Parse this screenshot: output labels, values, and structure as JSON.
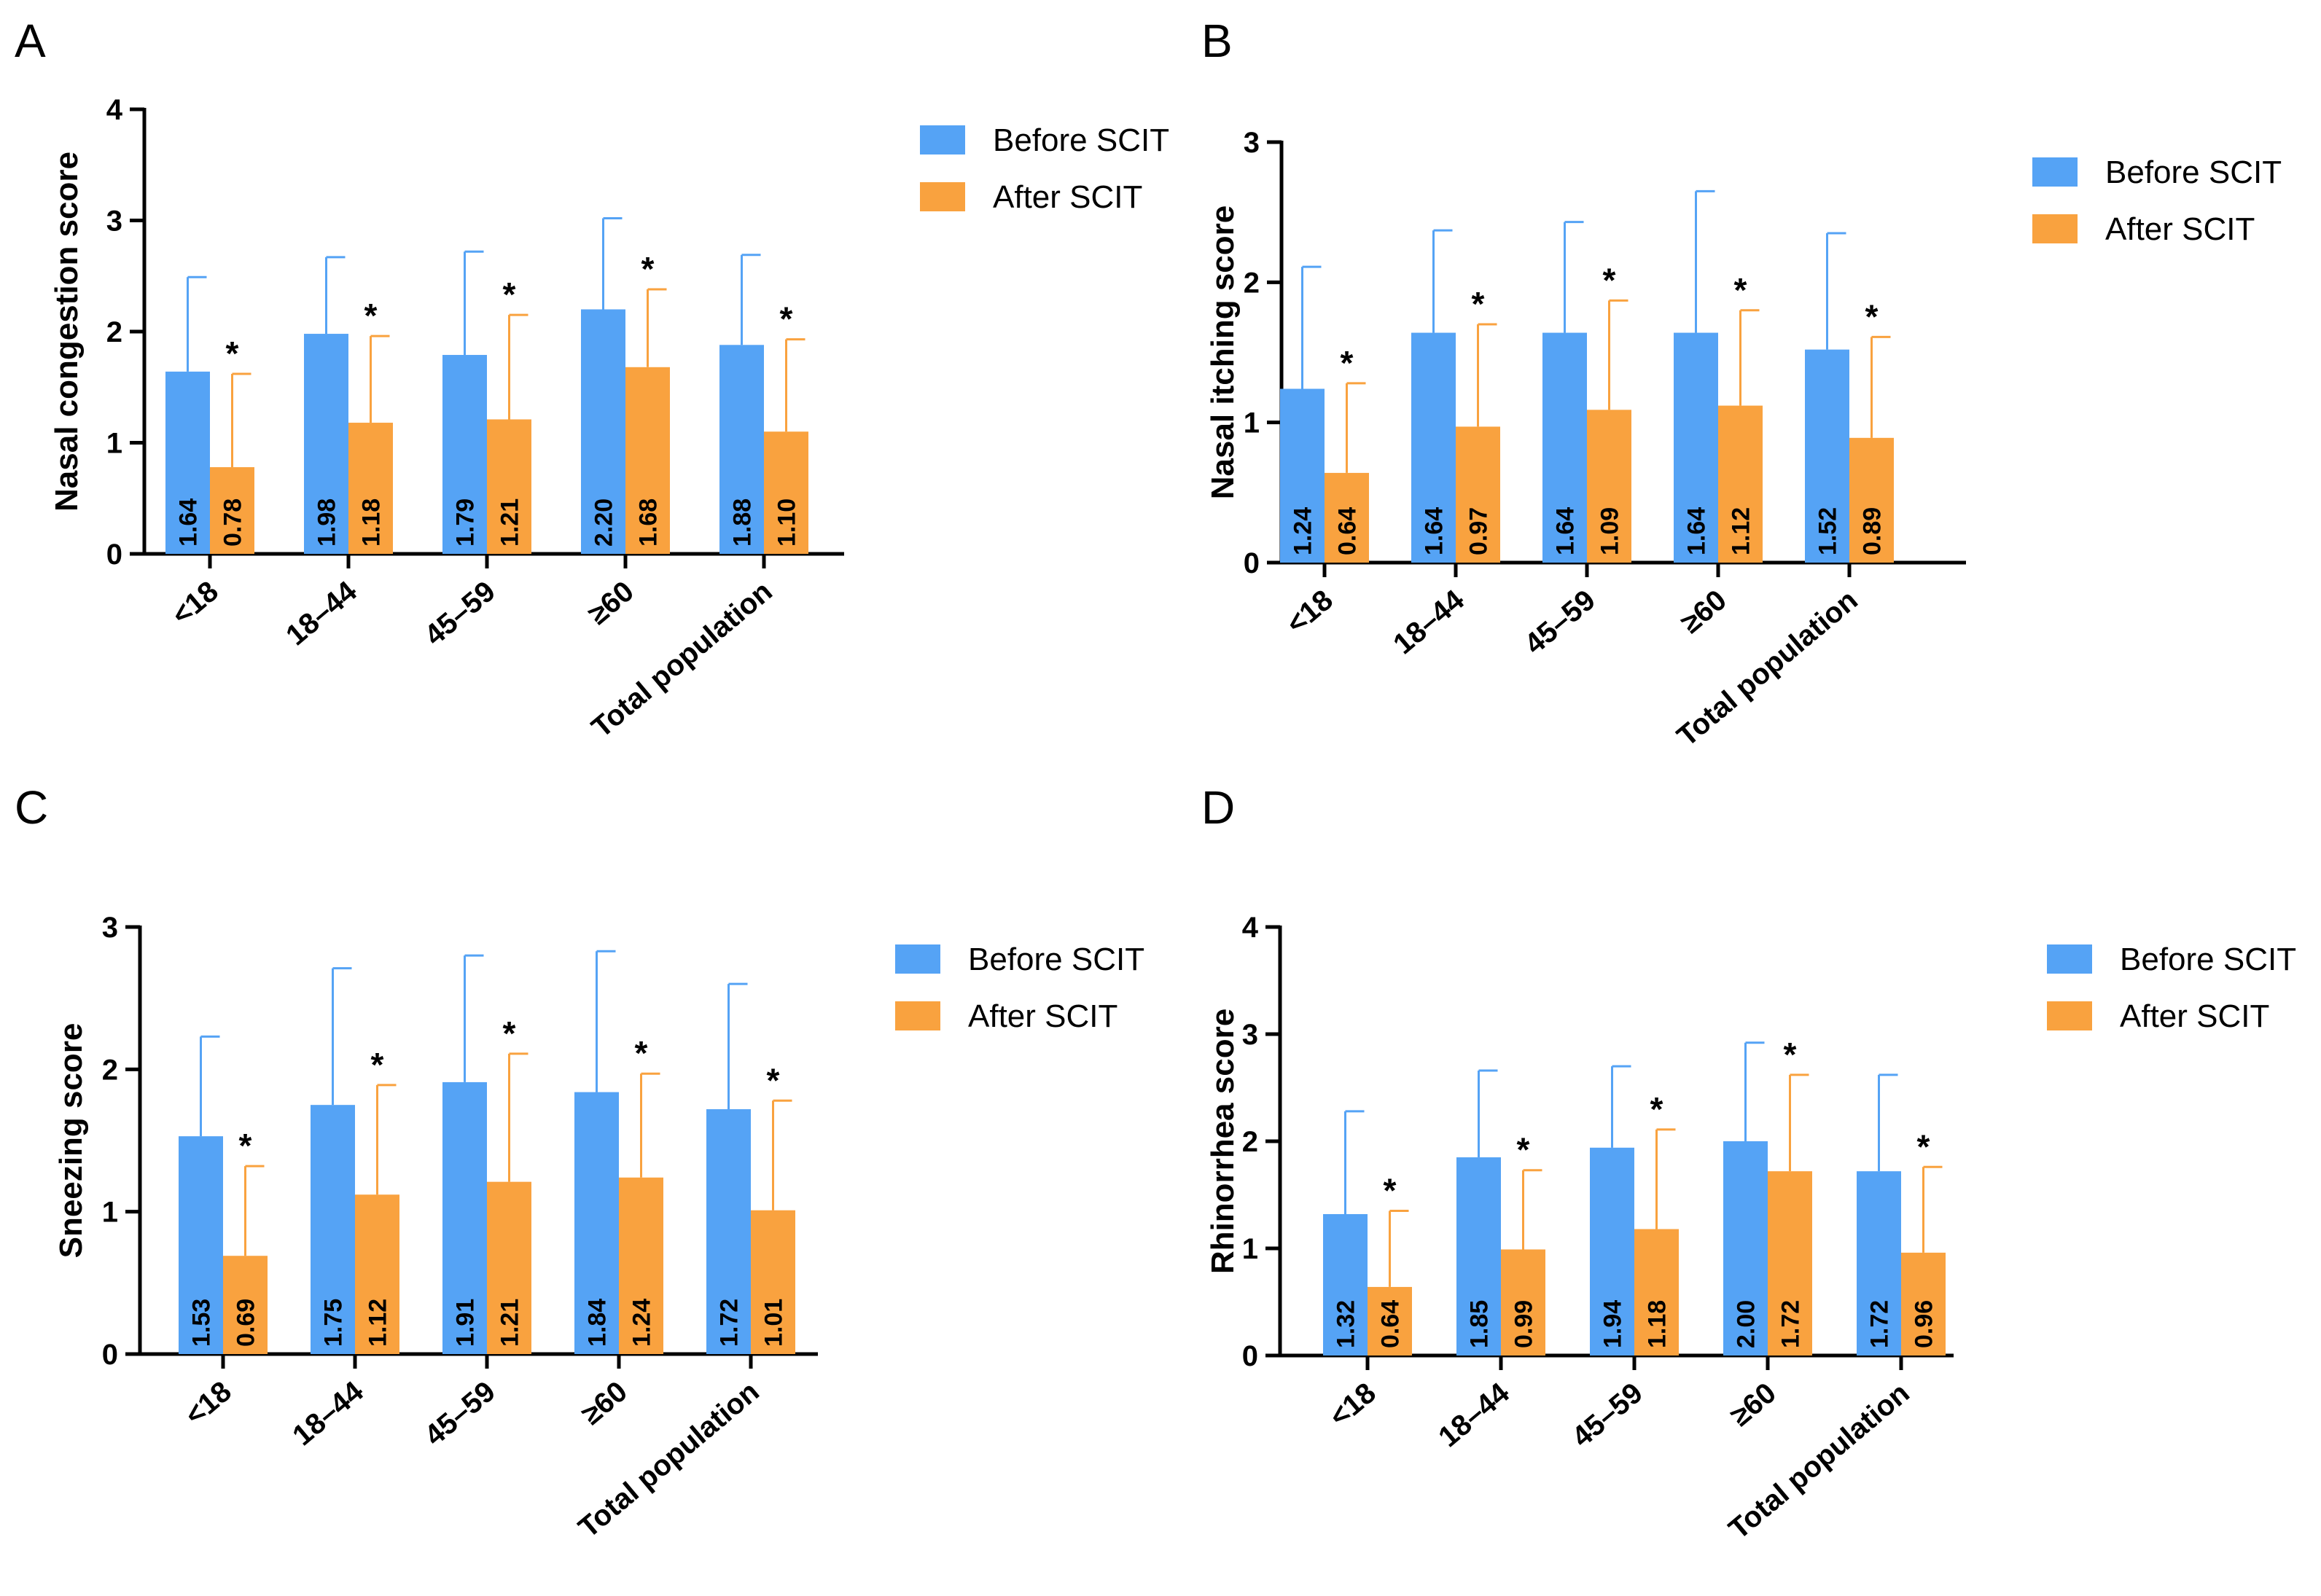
{
  "colors": {
    "before": "#55a3f5",
    "after": "#f9a23f",
    "axis": "#000000"
  },
  "legend": {
    "before": "Before SCIT",
    "after": "After SCIT"
  },
  "categories": [
    "<18",
    "18–44",
    "45–59",
    "≥60",
    "Total population"
  ],
  "significance_marker": "*",
  "chart_data": [
    {
      "panel": "A",
      "type": "bar",
      "ylabel": "Nasal congestion score",
      "ylim": [
        0,
        4
      ],
      "yticks": [
        0,
        1,
        2,
        3,
        4
      ],
      "categories": [
        "<18",
        "18–44",
        "45–59",
        "≥60",
        "Total population"
      ],
      "series": [
        {
          "name": "Before SCIT",
          "values": [
            1.64,
            1.98,
            1.79,
            2.2,
            1.88
          ],
          "labels": [
            "1.64",
            "1.98",
            "1.79",
            "2.20",
            "1.88"
          ],
          "error_upper": [
            2.49,
            2.67,
            2.72,
            3.02,
            2.69
          ]
        },
        {
          "name": "After SCIT",
          "values": [
            0.78,
            1.18,
            1.21,
            1.68,
            1.1
          ],
          "labels": [
            "0.78",
            "1.18",
            "1.21",
            "1.68",
            "1.10"
          ],
          "error_upper": [
            1.62,
            1.96,
            2.15,
            2.38,
            1.93
          ]
        }
      ],
      "significant": [
        true,
        true,
        true,
        true,
        true
      ]
    },
    {
      "panel": "B",
      "type": "bar",
      "ylabel": "Nasal itching score",
      "ylim": [
        0,
        3
      ],
      "yticks": [
        0,
        1,
        2,
        3
      ],
      "categories": [
        "<18",
        "18–44",
        "45–59",
        "≥60",
        "Total population"
      ],
      "series": [
        {
          "name": "Before SCIT",
          "values": [
            1.24,
            1.64,
            1.64,
            1.64,
            1.52
          ],
          "labels": [
            "1.24",
            "1.64",
            "1.64",
            "1.64",
            "1.52"
          ],
          "error_upper": [
            2.11,
            2.37,
            2.43,
            2.65,
            2.35
          ]
        },
        {
          "name": "After SCIT",
          "values": [
            0.64,
            0.97,
            1.09,
            1.12,
            0.89
          ],
          "labels": [
            "0.64",
            "0.97",
            "1.09",
            "1.12",
            "0.89"
          ],
          "error_upper": [
            1.28,
            1.7,
            1.87,
            1.8,
            1.61
          ]
        }
      ],
      "significant": [
        true,
        true,
        true,
        true,
        true
      ]
    },
    {
      "panel": "C",
      "type": "bar",
      "ylabel": "Sneezing score",
      "ylim": [
        0,
        3
      ],
      "yticks": [
        0,
        1,
        2,
        3
      ],
      "categories": [
        "<18",
        "18–44",
        "45–59",
        "≥60",
        "Total population"
      ],
      "series": [
        {
          "name": "Before SCIT",
          "values": [
            1.53,
            1.75,
            1.91,
            1.84,
            1.72
          ],
          "labels": [
            "1.53",
            "1.75",
            "1.91",
            "1.84",
            "1.72"
          ],
          "error_upper": [
            2.23,
            2.71,
            2.8,
            2.83,
            2.6
          ]
        },
        {
          "name": "After SCIT",
          "values": [
            0.69,
            1.12,
            1.21,
            1.24,
            1.01
          ],
          "labels": [
            "0.69",
            "1.12",
            "1.21",
            "1.24",
            "1.01"
          ],
          "error_upper": [
            1.32,
            1.89,
            2.11,
            1.97,
            1.78
          ]
        }
      ],
      "significant": [
        true,
        true,
        true,
        true,
        true
      ]
    },
    {
      "panel": "D",
      "type": "bar",
      "ylabel": "Rhinorrhea score",
      "ylim": [
        0,
        4
      ],
      "yticks": [
        0,
        1,
        2,
        3,
        4
      ],
      "categories": [
        "<18",
        "18–44",
        "45–59",
        "≥60",
        "Total population"
      ],
      "series": [
        {
          "name": "Before SCIT",
          "values": [
            1.32,
            1.85,
            1.94,
            2.0,
            1.72
          ],
          "labels": [
            "1.32",
            "1.85",
            "1.94",
            "2.00",
            "1.72"
          ],
          "error_upper": [
            2.28,
            2.66,
            2.7,
            2.92,
            2.62
          ]
        },
        {
          "name": "After SCIT",
          "values": [
            0.64,
            0.99,
            1.18,
            1.72,
            0.96
          ],
          "labels": [
            "0.64",
            "0.99",
            "1.18",
            "1.72",
            "0.96"
          ],
          "error_upper": [
            1.35,
            1.73,
            2.11,
            2.62,
            1.76
          ]
        }
      ],
      "significant": [
        true,
        true,
        true,
        true,
        true
      ]
    }
  ]
}
